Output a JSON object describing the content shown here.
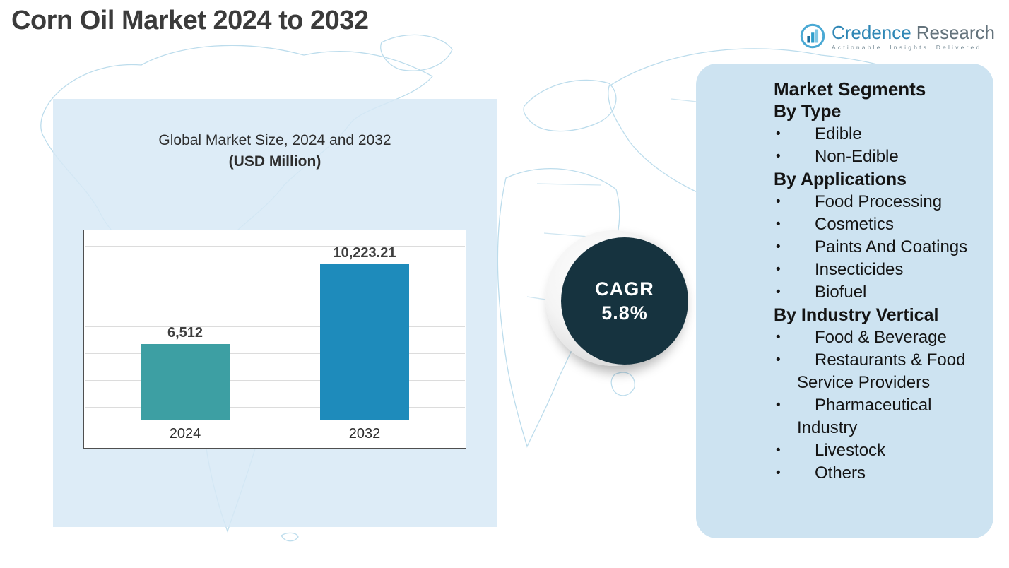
{
  "title": "Corn Oil Market 2024 to 2032",
  "logo": {
    "brand_primary": "Credence",
    "brand_secondary": "Research",
    "tagline": "Actionable Insights Delivered"
  },
  "chart": {
    "title_line1": "Global Market Size, 2024 and 2032",
    "title_line2": "(USD Million)"
  },
  "chart_data": {
    "type": "bar",
    "title": "Global Market Size, 2024 and 2032 (USD Million)",
    "categories": [
      "2024",
      "2032"
    ],
    "values": [
      6512,
      10223.21
    ],
    "value_labels": [
      "6,512",
      "10,223.21"
    ],
    "colors": [
      "#3d9fa3",
      "#1e8bbb"
    ],
    "ylim": [
      3000,
      11400
    ],
    "grid": true,
    "legend": "none",
    "xlabel": "",
    "ylabel": ""
  },
  "cagr": {
    "label": "CAGR",
    "value": "5.8%"
  },
  "segments": {
    "heading": "Market Segments",
    "bullet": "•",
    "groups": [
      {
        "label": "By Type",
        "items": [
          "Edible",
          "Non-Edible"
        ]
      },
      {
        "label": "By Applications",
        "items": [
          "Food Processing",
          "Cosmetics",
          "Paints And Coatings",
          "Insecticides",
          "Biofuel"
        ]
      },
      {
        "label": "By Industry Vertical",
        "items": [
          "Food & Beverage",
          "Restaurants & Food Service Providers",
          "Pharmaceutical Industry",
          "Livestock",
          "Others"
        ]
      }
    ]
  },
  "colors": {
    "cagr_circle": "#16333f",
    "segments_panel": "#cde3f1",
    "chart_panel_bg": "rgba(215,233,246,0.85)",
    "map_line": "#b5d9ea",
    "brand_blue": "#2e86b5"
  }
}
